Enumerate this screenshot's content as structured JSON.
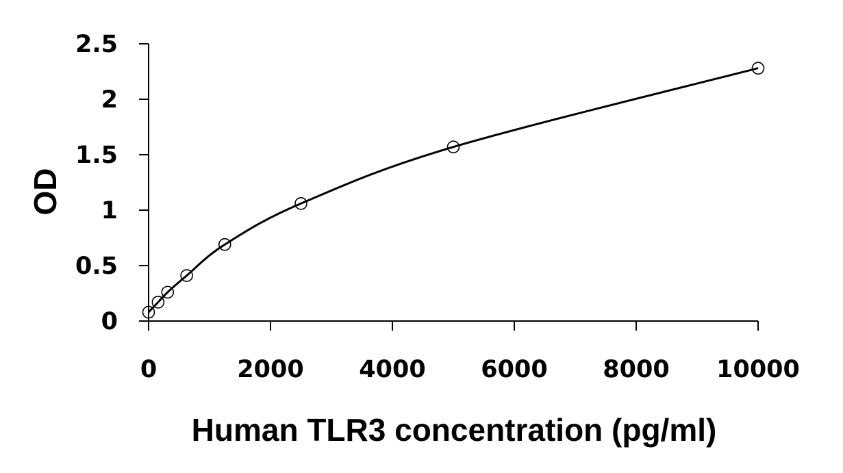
{
  "chart_data": {
    "type": "scatter",
    "title": "",
    "xlabel": "Human TLR3 concentration (pg/ml)",
    "ylabel": "OD",
    "xlim": [
      0,
      10000
    ],
    "ylim": [
      0,
      2.5
    ],
    "x_ticks": [
      "0",
      "2000",
      "4000",
      "6000",
      "8000",
      "10000"
    ],
    "y_ticks": [
      "0",
      "0.5",
      "1",
      "1.5",
      "2",
      "2.5"
    ],
    "grid": false,
    "legend": "none",
    "marker": "open-circle",
    "fit_curve": "smooth",
    "colors": {
      "line": "#000000",
      "marker": "#000000",
      "background": "#ffffff"
    },
    "series": [
      {
        "x": [
          0,
          156,
          312,
          625,
          1250,
          2500,
          5000,
          10000
        ],
        "y": [
          0.08,
          0.17,
          0.26,
          0.41,
          0.69,
          1.06,
          1.57,
          2.28
        ]
      }
    ]
  }
}
